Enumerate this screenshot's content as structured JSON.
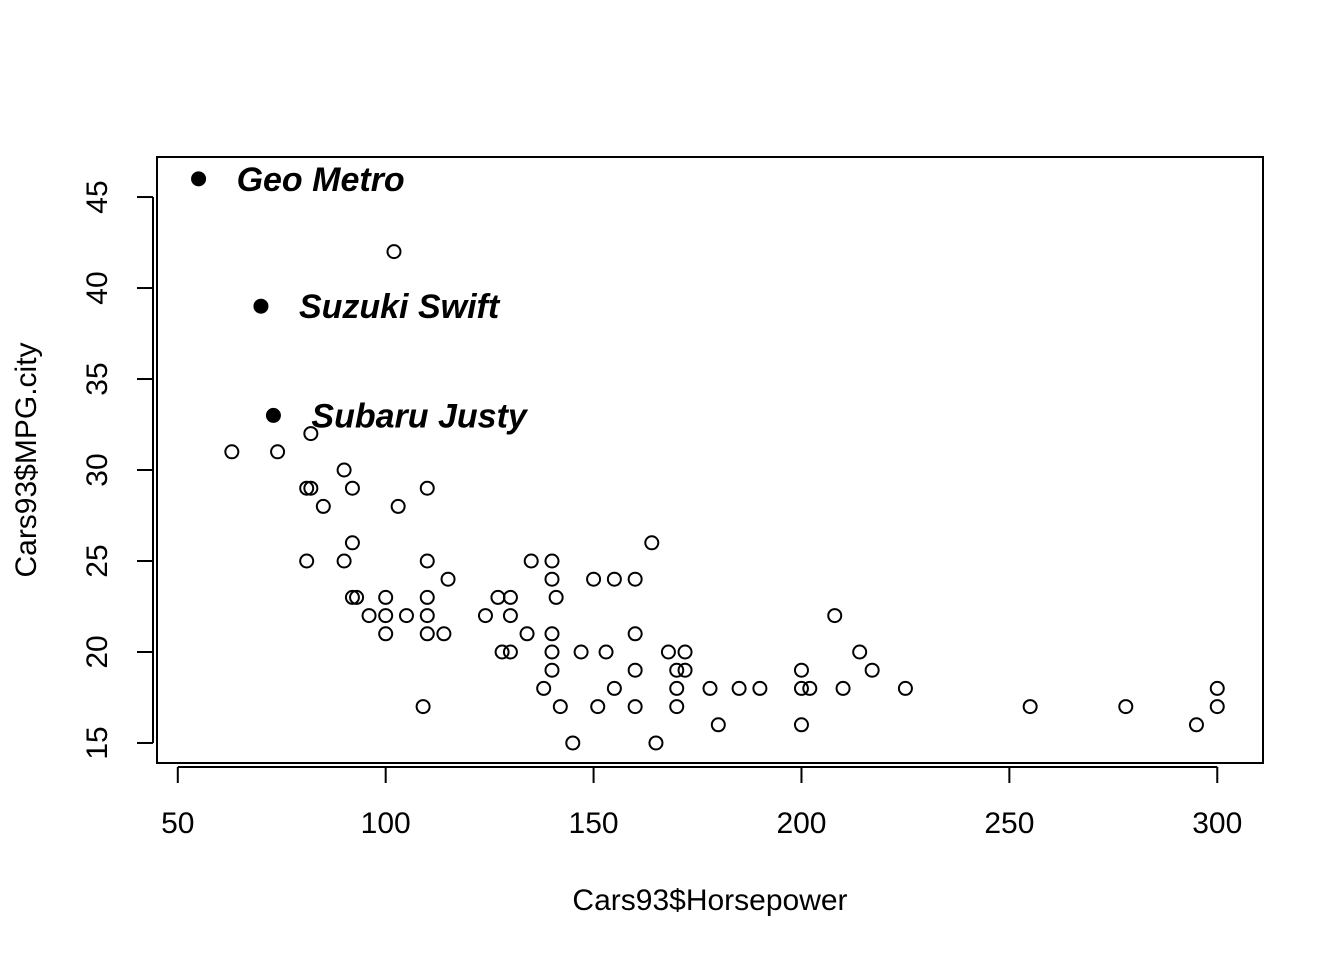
{
  "chart_data": {
    "type": "scatter",
    "title": "",
    "xlabel": "Cars93$Horsepower",
    "ylabel": "Cars93$MPG.city",
    "xlim": [
      45,
      311
    ],
    "ylim": [
      13.9,
      47.2
    ],
    "xticks": [
      50,
      100,
      150,
      200,
      250,
      300
    ],
    "yticks": [
      15,
      20,
      25,
      30,
      35,
      40,
      45
    ],
    "grid": false,
    "points": [
      [
        63,
        31
      ],
      [
        74,
        31
      ],
      [
        82,
        32
      ],
      [
        81,
        29
      ],
      [
        82,
        29
      ],
      [
        85,
        28
      ],
      [
        90,
        30
      ],
      [
        92,
        29
      ],
      [
        81,
        25
      ],
      [
        90,
        25
      ],
      [
        92,
        26
      ],
      [
        92,
        23
      ],
      [
        93,
        23
      ],
      [
        96,
        22
      ],
      [
        100,
        23
      ],
      [
        100,
        22
      ],
      [
        100,
        21
      ],
      [
        102,
        42
      ],
      [
        103,
        28
      ],
      [
        105,
        22
      ],
      [
        109,
        17
      ],
      [
        110,
        29
      ],
      [
        110,
        25
      ],
      [
        110,
        23
      ],
      [
        110,
        22
      ],
      [
        110,
        21
      ],
      [
        114,
        21
      ],
      [
        115,
        24
      ],
      [
        124,
        22
      ],
      [
        127,
        23
      ],
      [
        128,
        20
      ],
      [
        130,
        23
      ],
      [
        130,
        22
      ],
      [
        130,
        20
      ],
      [
        134,
        21
      ],
      [
        135,
        25
      ],
      [
        138,
        18
      ],
      [
        140,
        25
      ],
      [
        140,
        24
      ],
      [
        140,
        21
      ],
      [
        140,
        20
      ],
      [
        140,
        19
      ],
      [
        141,
        23
      ],
      [
        142,
        17
      ],
      [
        145,
        15
      ],
      [
        147,
        20
      ],
      [
        150,
        24
      ],
      [
        151,
        17
      ],
      [
        153,
        20
      ],
      [
        155,
        24
      ],
      [
        155,
        18
      ],
      [
        160,
        24
      ],
      [
        160,
        21
      ],
      [
        160,
        19
      ],
      [
        160,
        17
      ],
      [
        164,
        26
      ],
      [
        165,
        15
      ],
      [
        168,
        20
      ],
      [
        170,
        19
      ],
      [
        170,
        18
      ],
      [
        170,
        17
      ],
      [
        172,
        20
      ],
      [
        172,
        19
      ],
      [
        178,
        18
      ],
      [
        180,
        16
      ],
      [
        185,
        18
      ],
      [
        190,
        18
      ],
      [
        200,
        19
      ],
      [
        200,
        18
      ],
      [
        200,
        16
      ],
      [
        202,
        18
      ],
      [
        208,
        22
      ],
      [
        210,
        18
      ],
      [
        214,
        20
      ],
      [
        217,
        19
      ],
      [
        225,
        18
      ],
      [
        255,
        17
      ],
      [
        278,
        17
      ],
      [
        295,
        16
      ],
      [
        300,
        18
      ],
      [
        300,
        17
      ]
    ],
    "highlighted": [
      {
        "label": "Geo Metro",
        "x": 55,
        "y": 46
      },
      {
        "label": "Suzuki Swift",
        "x": 70,
        "y": 39
      },
      {
        "label": "Subaru Justy",
        "x": 73,
        "y": 33
      }
    ]
  }
}
